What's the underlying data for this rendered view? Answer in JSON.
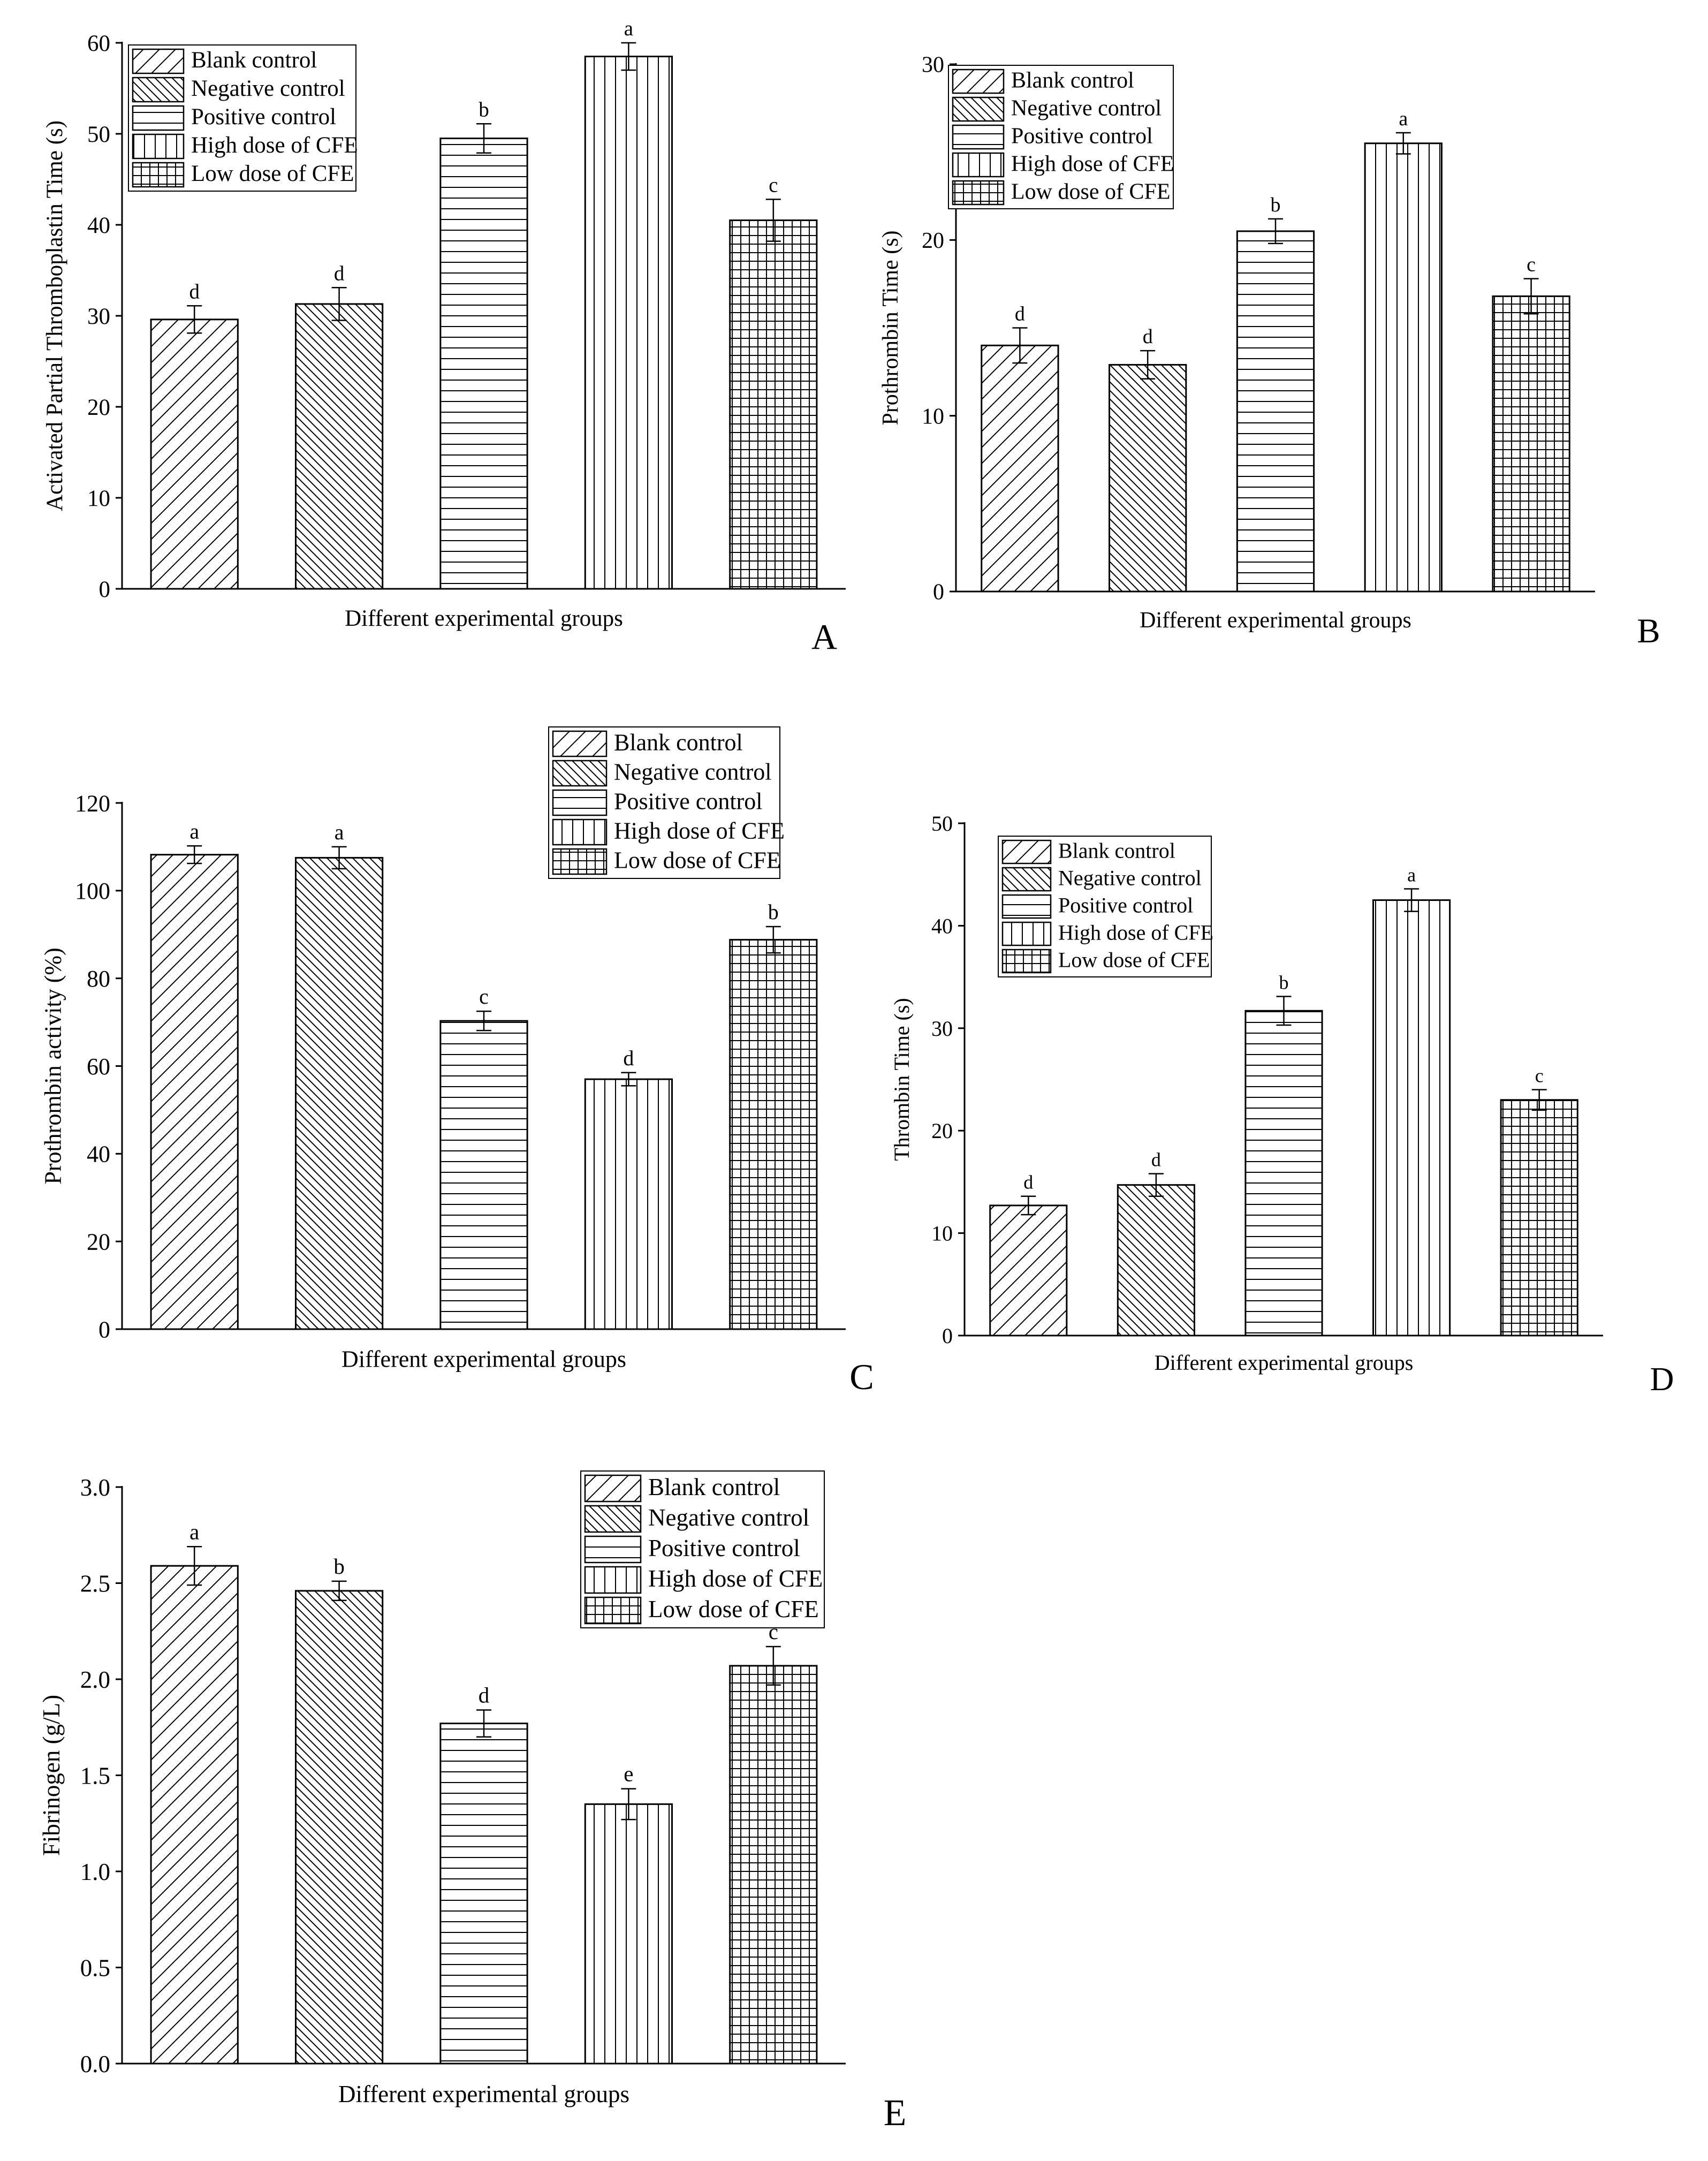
{
  "figure": {
    "patterns": [
      "fdiag",
      "bdiag",
      "horiz",
      "vert",
      "cross"
    ],
    "colors": {
      "stroke": "#000000",
      "background": "#ffffff"
    }
  },
  "chart_data": [
    {
      "panel": "A",
      "type": "bar",
      "categories": [
        "Blank control",
        "Negative control",
        "Positive control",
        "High dose of CFE",
        "Low dose of CFE"
      ],
      "values": [
        29.6,
        31.3,
        49.5,
        58.5,
        40.5
      ],
      "errors": [
        1.5,
        1.8,
        1.6,
        1.5,
        2.3
      ],
      "significance": [
        "d",
        "d",
        "b",
        "a",
        "c"
      ],
      "title": "",
      "xlabel": "Different experimental groups",
      "ylabel": "Activated Partial Thromboplastin Time (s)",
      "ylim": [
        0,
        60
      ],
      "yticks": [
        0,
        10,
        20,
        30,
        40,
        50,
        60
      ],
      "ytick_labels": [
        "0",
        "10",
        "20",
        "30",
        "40",
        "50",
        "60"
      ],
      "legend": [
        "Blank control",
        "Negative control",
        "Positive control",
        "High dose of CFE",
        "Low dose of CFE"
      ],
      "legend_position": "top-left"
    },
    {
      "panel": "B",
      "type": "bar",
      "categories": [
        "Blank control",
        "Negative control",
        "Positive control",
        "High dose of CFE",
        "Low dose of CFE"
      ],
      "values": [
        14.0,
        12.9,
        20.5,
        25.5,
        16.8
      ],
      "errors": [
        1.0,
        0.8,
        0.7,
        0.6,
        1.0
      ],
      "significance": [
        "d",
        "d",
        "b",
        "a",
        "c"
      ],
      "title": "",
      "xlabel": "Different experimental groups",
      "ylabel": "Prothrombin Time (s)",
      "ylim": [
        0,
        30
      ],
      "yticks": [
        0,
        10,
        20,
        30
      ],
      "ytick_labels": [
        "0",
        "10",
        "20",
        "30"
      ],
      "legend": [
        "Blank control",
        "Negative control",
        "Positive control",
        "High dose of CFE",
        "Low dose of CFE"
      ],
      "legend_position": "top-left"
    },
    {
      "panel": "C",
      "type": "bar",
      "categories": [
        "Blank control",
        "Negative control",
        "Positive control",
        "High dose of CFE",
        "Low dose of CFE"
      ],
      "values": [
        108.2,
        107.5,
        70.3,
        57.0,
        88.8
      ],
      "errors": [
        2.0,
        2.5,
        2.2,
        1.5,
        3.0
      ],
      "significance": [
        "a",
        "a",
        "c",
        "d",
        "b"
      ],
      "title": "",
      "xlabel": "Different experimental groups",
      "ylabel": "Prothrombin activity (%)",
      "ylim": [
        0,
        120
      ],
      "yticks": [
        0,
        20,
        40,
        60,
        80,
        100,
        120
      ],
      "ytick_labels": [
        "0",
        "20",
        "40",
        "60",
        "80",
        "100",
        "120"
      ],
      "legend": [
        "Blank control",
        "Negative control",
        "Positive control",
        "High dose of CFE",
        "Low dose of CFE"
      ],
      "legend_position": "top-right"
    },
    {
      "panel": "D",
      "type": "bar",
      "categories": [
        "Blank control",
        "Negative control",
        "Positive control",
        "High dose of CFE",
        "Low dose of CFE"
      ],
      "values": [
        12.7,
        14.7,
        31.7,
        42.5,
        23.0
      ],
      "errors": [
        0.9,
        1.1,
        1.4,
        1.1,
        1.0
      ],
      "significance": [
        "d",
        "d",
        "b",
        "a",
        "c"
      ],
      "title": "",
      "xlabel": "Different experimental groups",
      "ylabel": "Thrombin Time (s)",
      "ylim": [
        0,
        50
      ],
      "yticks": [
        0,
        10,
        20,
        30,
        40,
        50
      ],
      "ytick_labels": [
        "0",
        "10",
        "20",
        "30",
        "40",
        "50"
      ],
      "legend": [
        "Blank control",
        "Negative control",
        "Positive control",
        "High dose of CFE",
        "Low dose of CFE"
      ],
      "legend_position": "top-left"
    },
    {
      "panel": "E",
      "type": "bar",
      "categories": [
        "Blank control",
        "Negative control",
        "Positive control",
        "High dose of CFE",
        "Low dose of CFE"
      ],
      "values": [
        2.59,
        2.46,
        1.77,
        1.35,
        2.07
      ],
      "errors": [
        0.1,
        0.05,
        0.07,
        0.08,
        0.1
      ],
      "significance": [
        "a",
        "b",
        "d",
        "e",
        "c"
      ],
      "title": "",
      "xlabel": "Different experimental groups",
      "ylabel": "Fibrinogen (g/L)",
      "ylim": [
        0,
        3
      ],
      "yticks": [
        0,
        0.5,
        1,
        1.5,
        2,
        2.5,
        3
      ],
      "ytick_labels": [
        "0.0",
        "0.5",
        "1.0",
        "1.5",
        "2.0",
        "2.5",
        "3.0"
      ],
      "legend": [
        "Blank control",
        "Negative control",
        "Positive control",
        "High dose of CFE",
        "Low dose of CFE"
      ],
      "legend_position": "top-right"
    }
  ]
}
